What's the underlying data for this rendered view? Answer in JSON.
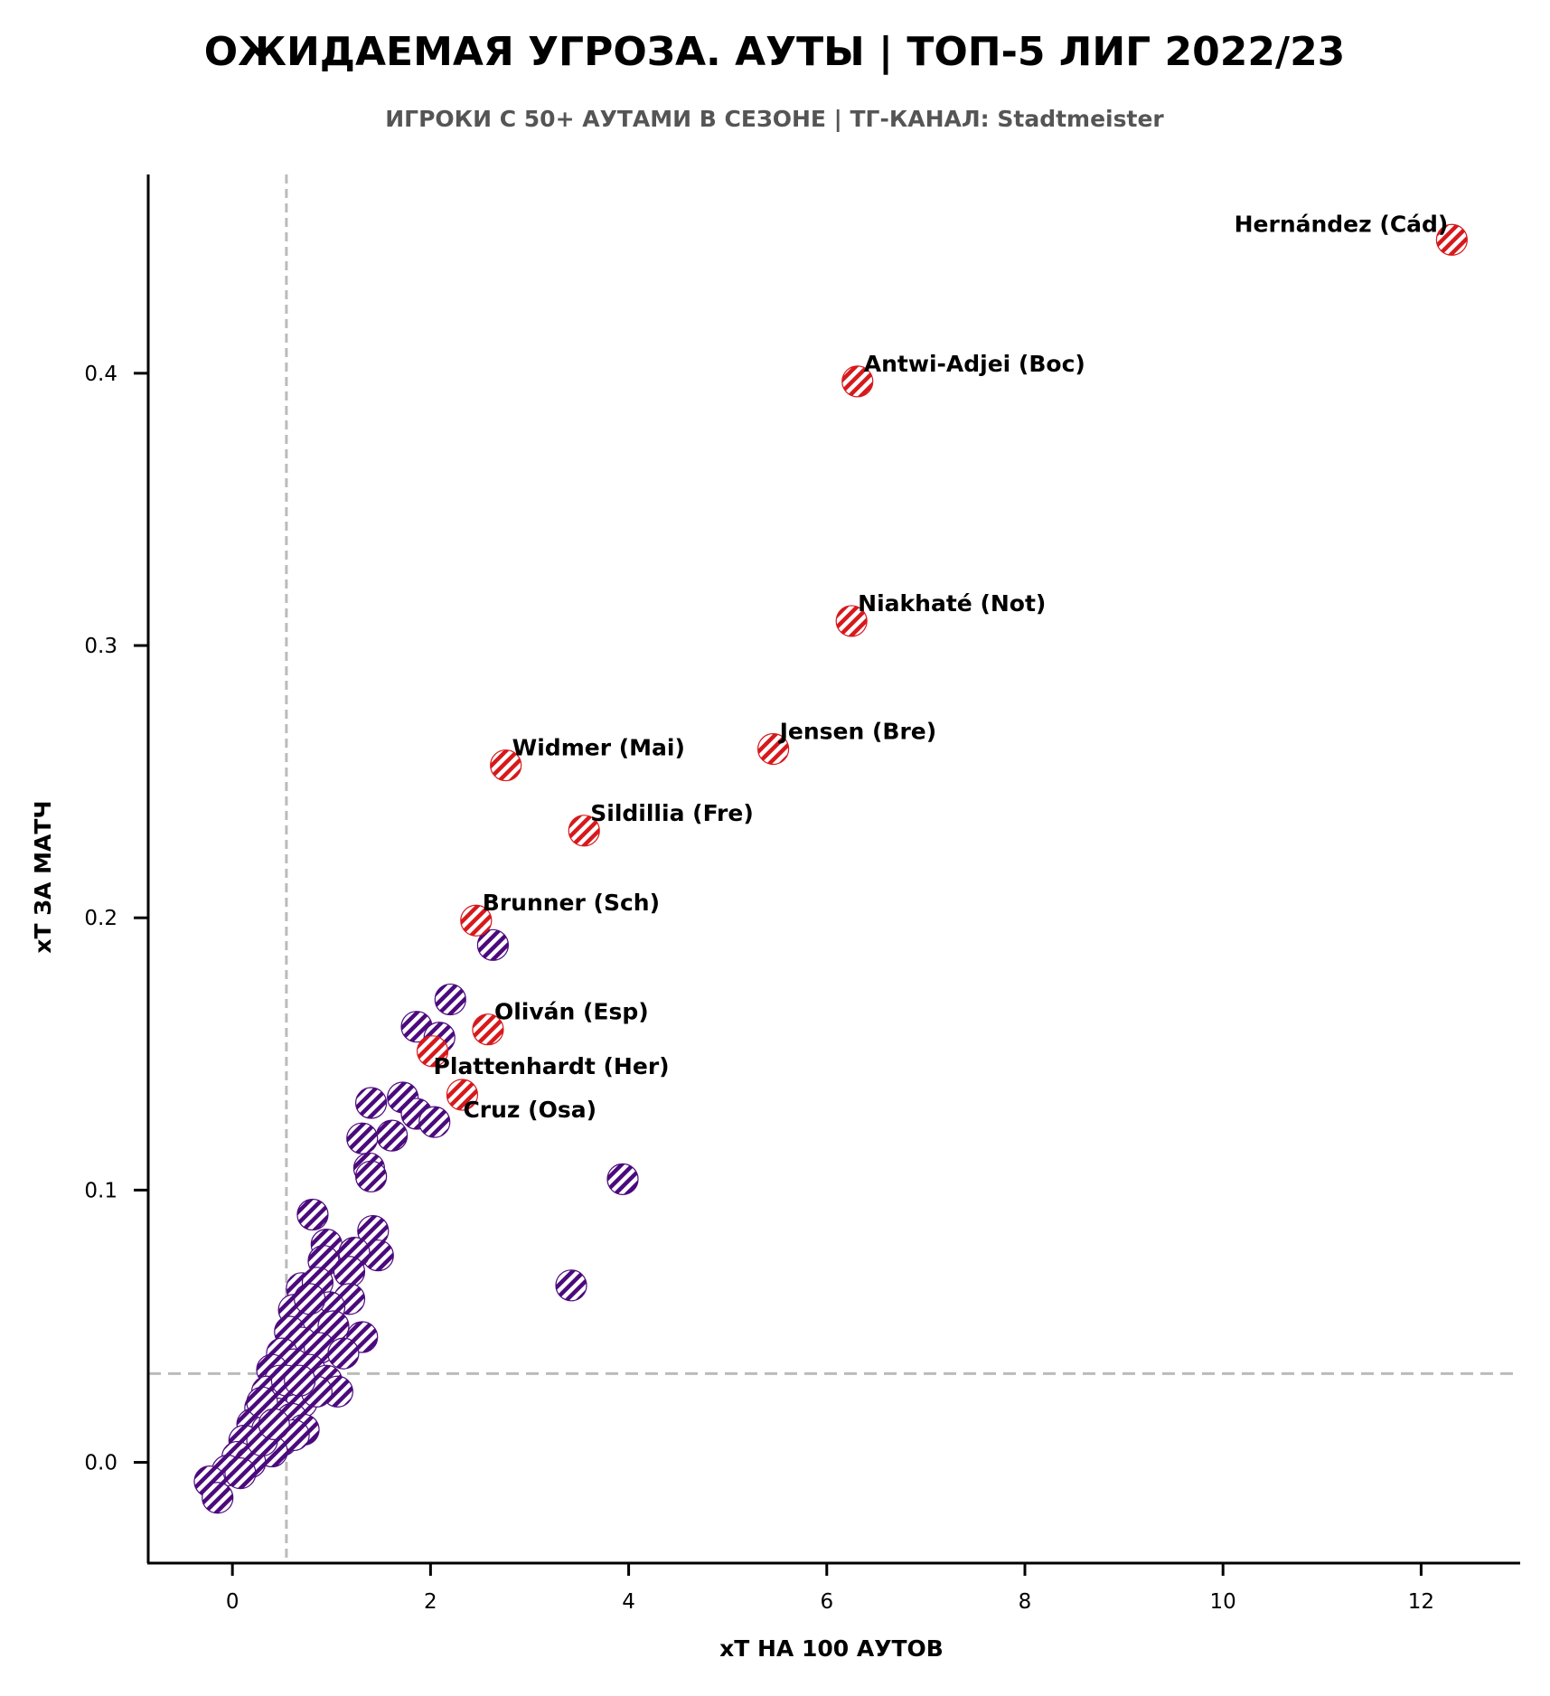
{
  "chart_data": {
    "type": "scatter",
    "title": "ОЖИДАЕМАЯ УГРОЗА. АУТЫ | ТОП-5 ЛИГ 2022/23",
    "subtitle": "ИГРОКИ С 50+ АУТАМИ В СЕЗОНЕ | ТГ-КАНАЛ: Stadtmeister",
    "xlabel": "xT НА 100 АУТОВ",
    "ylabel": "xT ЗА МАТЧ",
    "xlim": [
      -0.85,
      13.0
    ],
    "ylim": [
      -0.037,
      0.473
    ],
    "xticks": [
      0,
      2,
      4,
      6,
      8,
      10,
      12
    ],
    "xtick_labels": [
      "0",
      "2",
      "4",
      "6",
      "8",
      "10",
      "12"
    ],
    "yticks": [
      0.0,
      0.1,
      0.2,
      0.3,
      0.4
    ],
    "ytick_labels": [
      "0.0",
      "0.1",
      "0.2",
      "0.3",
      "0.4"
    ],
    "grid": false,
    "reference_lines": {
      "x_mean": 0.545,
      "y_mean": 0.0326
    },
    "colors": {
      "highlight": "#d7191c",
      "other": "#4b0a7d",
      "ref_line": "#bbbbbb"
    },
    "highlighted": [
      {
        "name": "Hernández (Cád)",
        "x": 12.31,
        "y": 0.449,
        "label_side": "left"
      },
      {
        "name": "Antwi-Adjei (Boc)",
        "x": 6.31,
        "y": 0.397,
        "label_side": "right"
      },
      {
        "name": "Niakhaté (Not)",
        "x": 6.25,
        "y": 0.309,
        "label_side": "right"
      },
      {
        "name": "Jensen (Bre)",
        "x": 5.46,
        "y": 0.262,
        "label_side": "right"
      },
      {
        "name": "Widmer (Mai)",
        "x": 2.76,
        "y": 0.256,
        "label_side": "right"
      },
      {
        "name": "Sildillia (Fre)",
        "x": 3.55,
        "y": 0.232,
        "label_side": "right"
      },
      {
        "name": "Brunner (Sch)",
        "x": 2.46,
        "y": 0.199,
        "label_side": "right"
      },
      {
        "name": "Oliván (Esp)",
        "x": 2.58,
        "y": 0.159,
        "label_side": "right"
      },
      {
        "name": "Plattenhardt (Her)",
        "x": 2.02,
        "y": 0.151,
        "label_side": "below"
      },
      {
        "name": "Cruz (Osa)",
        "x": 2.32,
        "y": 0.135,
        "label_side": "below"
      }
    ],
    "others": [
      [
        2.63,
        0.19
      ],
      [
        2.2,
        0.17
      ],
      [
        1.86,
        0.16
      ],
      [
        2.09,
        0.156
      ],
      [
        3.94,
        0.104
      ],
      [
        3.42,
        0.065
      ],
      [
        1.4,
        0.132
      ],
      [
        1.72,
        0.134
      ],
      [
        1.86,
        0.128
      ],
      [
        2.04,
        0.125
      ],
      [
        1.61,
        0.12
      ],
      [
        1.31,
        0.119
      ],
      [
        1.38,
        0.108
      ],
      [
        1.4,
        0.105
      ],
      [
        0.81,
        0.091
      ],
      [
        1.42,
        0.085
      ],
      [
        1.47,
        0.076
      ],
      [
        0.95,
        0.08
      ],
      [
        1.23,
        0.077
      ],
      [
        0.92,
        0.074
      ],
      [
        1.18,
        0.07
      ],
      [
        0.7,
        0.064
      ],
      [
        0.86,
        0.066
      ],
      [
        1.18,
        0.06
      ],
      [
        0.98,
        0.057
      ],
      [
        0.62,
        0.056
      ],
      [
        0.8,
        0.052
      ],
      [
        1.02,
        0.05
      ],
      [
        1.31,
        0.046
      ],
      [
        0.58,
        0.048
      ],
      [
        0.7,
        0.044
      ],
      [
        0.88,
        0.042
      ],
      [
        1.12,
        0.04
      ],
      [
        0.5,
        0.04
      ],
      [
        0.62,
        0.036
      ],
      [
        0.78,
        0.034
      ],
      [
        0.95,
        0.03
      ],
      [
        1.06,
        0.026
      ],
      [
        0.4,
        0.034
      ],
      [
        0.48,
        0.03
      ],
      [
        0.35,
        0.026
      ],
      [
        0.55,
        0.024
      ],
      [
        0.7,
        0.022
      ],
      [
        0.85,
        0.026
      ],
      [
        0.28,
        0.02
      ],
      [
        0.45,
        0.018
      ],
      [
        0.6,
        0.016
      ],
      [
        0.72,
        0.012
      ],
      [
        0.2,
        0.014
      ],
      [
        0.35,
        0.012
      ],
      [
        0.5,
        0.008
      ],
      [
        0.62,
        0.01
      ],
      [
        0.12,
        0.008
      ],
      [
        0.25,
        0.005
      ],
      [
        0.4,
        0.004
      ],
      [
        0.05,
        0.002
      ],
      [
        0.18,
        0.0
      ],
      [
        0.3,
        0.008
      ],
      [
        -0.05,
        -0.003
      ],
      [
        0.08,
        -0.004
      ],
      [
        -0.23,
        -0.007
      ],
      [
        -0.15,
        -0.013
      ],
      [
        0.55,
        0.03
      ],
      [
        0.3,
        0.022
      ],
      [
        0.42,
        0.014
      ],
      [
        0.78,
        0.06
      ],
      [
        0.68,
        0.03
      ]
    ]
  }
}
